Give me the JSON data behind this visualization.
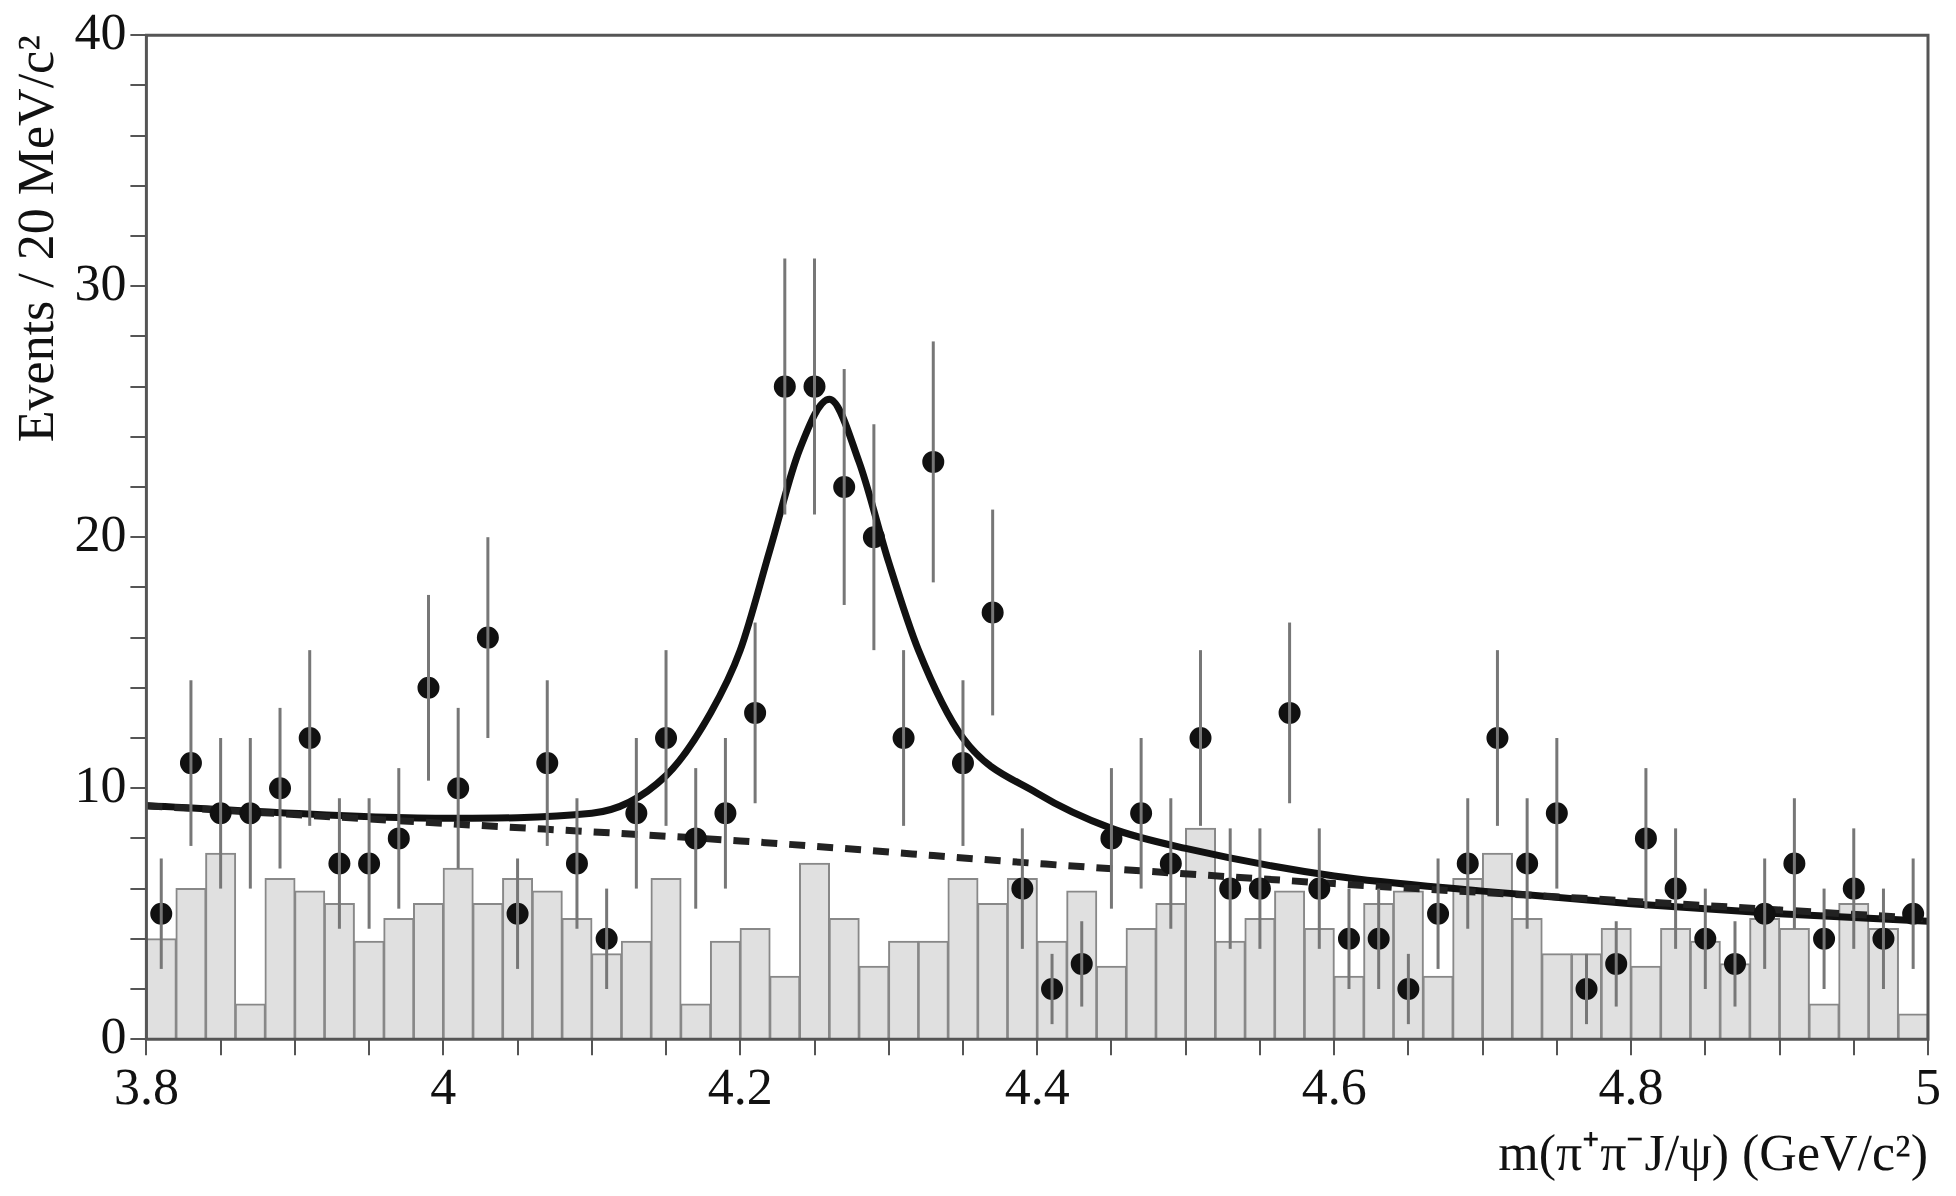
{
  "chart_data": {
    "type": "scatter",
    "xlabel": "m(π⁺π⁻J/ψ) (GeV/c²)",
    "ylabel": "Events / 20 MeV/c²",
    "xlim": [
      3.8,
      5
    ],
    "ylim": [
      0,
      40
    ],
    "xticks": [
      3.8,
      {
        "value": 3.85,
        "label": null
      },
      {
        "value": 3.9,
        "label": null
      },
      {
        "value": 3.95,
        "label": null
      },
      4,
      {
        "value": 4.05,
        "label": null
      },
      {
        "value": 4.1,
        "label": null
      },
      {
        "value": 4.15,
        "label": null
      },
      4.2,
      {
        "value": 4.25,
        "label": null
      },
      {
        "value": 4.3,
        "label": null
      },
      {
        "value": 4.35,
        "label": null
      },
      4.4,
      {
        "value": 4.45,
        "label": null
      },
      {
        "value": 4.5,
        "label": null
      },
      {
        "value": 4.55,
        "label": null
      },
      4.6,
      {
        "value": 4.65,
        "label": null
      },
      {
        "value": 4.7,
        "label": null
      },
      {
        "value": 4.75,
        "label": null
      },
      4.8,
      {
        "value": 4.85,
        "label": null
      },
      {
        "value": 4.9,
        "label": null
      },
      {
        "value": 4.95,
        "label": null
      },
      5
    ],
    "yticks": [
      0,
      {
        "value": 2,
        "label": null
      },
      {
        "value": 4,
        "label": null
      },
      {
        "value": 6,
        "label": null
      },
      {
        "value": 8,
        "label": null
      },
      10,
      {
        "value": 12,
        "label": null
      },
      {
        "value": 14,
        "label": null
      },
      {
        "value": 16,
        "label": null
      },
      {
        "value": 18,
        "label": null
      },
      20,
      {
        "value": 22,
        "label": null
      },
      {
        "value": 24,
        "label": null
      },
      {
        "value": 26,
        "label": null
      },
      {
        "value": 28,
        "label": null
      },
      30,
      {
        "value": 32,
        "label": null
      },
      {
        "value": 34,
        "label": null
      },
      {
        "value": 36,
        "label": null
      },
      {
        "value": 38,
        "label": null
      },
      40
    ],
    "grid": false,
    "legend": false,
    "series": [
      {
        "type": "histogram",
        "color": "#e0e0e0",
        "bins": [
          3.8,
          3.82,
          3.84,
          3.86,
          3.88,
          3.9,
          3.92,
          3.94,
          3.96,
          3.98,
          4,
          4.02,
          4.04,
          4.06,
          4.08,
          4.1,
          4.12,
          4.14,
          4.16,
          4.18,
          4.2,
          4.22,
          4.24,
          4.26,
          4.28,
          4.3,
          4.32,
          4.34,
          4.36,
          4.38,
          4.4,
          4.42,
          4.44,
          4.46,
          4.48,
          4.5,
          4.52,
          4.54,
          4.56,
          4.58,
          4.6,
          4.62,
          4.64,
          4.66,
          4.68,
          4.7,
          4.72,
          4.74,
          4.76,
          4.78,
          4.8,
          4.82,
          4.84,
          4.86,
          4.88,
          4.9,
          4.92,
          4.94,
          4.96,
          4.98,
          5
        ],
        "values": [
          4,
          6,
          7.4,
          1.4,
          6.4,
          5.9,
          5.4,
          3.9,
          4.8,
          5.4,
          6.8,
          5.4,
          6.4,
          5.9,
          4.8,
          3.4,
          3.9,
          6.4,
          1.4,
          3.9,
          4.4,
          2.5,
          7,
          4.8,
          2.9,
          3.9,
          3.9,
          6.4,
          5.4,
          6.4,
          3.9,
          5.9,
          2.9,
          4.4,
          5.4,
          8.4,
          3.9,
          4.8,
          5.9,
          4.4,
          2.5,
          5.4,
          5.9,
          2.5,
          6.4,
          7.4,
          4.8,
          3.4,
          3.4,
          4.4,
          2.9,
          4.4,
          3.9,
          3,
          4.8,
          4.4,
          1.4,
          5.4,
          4.4,
          1
        ]
      },
      {
        "type": "line",
        "color": "#222222",
        "line_style": "dashed",
        "marker": "none",
        "x": [
          3.8,
          4,
          4.2,
          4.4,
          4.6,
          4.8,
          5
        ],
        "values": [
          9.3,
          8.6,
          7.9,
          7,
          6.2,
          5.5,
          4.8
        ]
      },
      {
        "type": "line",
        "color": "#111111",
        "line_style": "solid",
        "marker": "none",
        "x": [
          3.8,
          4,
          4.1,
          4.15,
          4.18,
          4.2,
          4.22,
          4.24,
          4.26,
          4.28,
          4.3,
          4.32,
          4.35,
          4.4,
          4.45,
          4.5,
          4.6,
          4.7,
          4.8,
          4.9,
          5
        ],
        "values": [
          9.3,
          8.8,
          9,
          10.5,
          13,
          15.5,
          19.5,
          23.5,
          25.5,
          23,
          19,
          15.5,
          12,
          9.8,
          8.4,
          7.6,
          6.5,
          5.9,
          5.4,
          5,
          4.7
        ]
      },
      {
        "color": "#111111",
        "marker": "circle",
        "x": [
          3.81,
          3.83,
          3.85,
          3.87,
          3.89,
          3.91,
          3.93,
          3.95,
          3.97,
          3.99,
          4.01,
          4.03,
          4.05,
          4.07,
          4.09,
          4.11,
          4.13,
          4.15,
          4.17,
          4.19,
          4.21,
          4.23,
          4.25,
          4.27,
          4.29,
          4.31,
          4.33,
          4.35,
          4.37,
          4.39,
          4.41,
          4.43,
          4.45,
          4.47,
          4.49,
          4.51,
          4.53,
          4.55,
          4.57,
          4.59,
          4.61,
          4.63,
          4.65,
          4.67,
          4.69,
          4.71,
          4.73,
          4.75,
          4.77,
          4.79,
          4.81,
          4.83,
          4.85,
          4.87,
          4.89,
          4.91,
          4.93,
          4.95,
          4.97,
          4.99
        ],
        "values": [
          5,
          11,
          9,
          9,
          10,
          12,
          7,
          7,
          8,
          14,
          10,
          16,
          5,
          11,
          7,
          4,
          9,
          12,
          8,
          9,
          13,
          26,
          26,
          22,
          20,
          12,
          23,
          11,
          17,
          6,
          2,
          3,
          8,
          9,
          7,
          12,
          6,
          6,
          13,
          6,
          4,
          4,
          2,
          5,
          7,
          12,
          7,
          9,
          2,
          3,
          8,
          6,
          4,
          3,
          5,
          7,
          4,
          6,
          4,
          5
        ],
        "errors": [
          2.2,
          3.3,
          3,
          3,
          3.2,
          3.5,
          2.6,
          2.6,
          2.8,
          3.7,
          3.2,
          4,
          2.2,
          3.3,
          2.6,
          2,
          3,
          3.5,
          2.8,
          3,
          3.6,
          5.1,
          5.1,
          4.7,
          4.5,
          3.5,
          4.8,
          3.3,
          4.1,
          2.4,
          1.4,
          1.7,
          2.8,
          3,
          2.6,
          3.5,
          2.4,
          2.4,
          3.6,
          2.4,
          2,
          2,
          1.4,
          2.2,
          2.6,
          3.5,
          2.6,
          3,
          1.4,
          1.7,
          2.8,
          2.4,
          2,
          1.7,
          2.2,
          2.6,
          2,
          2.4,
          2,
          2.2
        ]
      }
    ]
  }
}
